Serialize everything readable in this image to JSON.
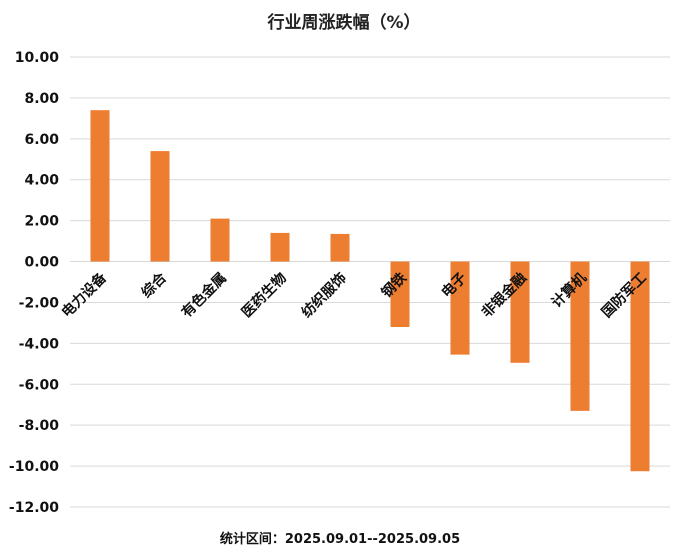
{
  "chart_data": {
    "type": "bar",
    "title": "行业周涨跌幅（%）",
    "categories": [
      "电力设备",
      "综合",
      "有色金属",
      "医药生物",
      "纺织服饰",
      "钢铁",
      "电子",
      "非银金融",
      "计算机",
      "国防军工"
    ],
    "values": [
      7.4,
      5.4,
      2.1,
      1.4,
      1.35,
      -3.2,
      -4.55,
      -4.95,
      -7.3,
      -10.25
    ],
    "ylim": [
      -12,
      10
    ],
    "yticks": [
      "10.00",
      "8.00",
      "6.00",
      "4.00",
      "2.00",
      "0.00",
      "-2.00",
      "-4.00",
      "-6.00",
      "-8.00",
      "-10.00",
      "-12.00"
    ],
    "ytick_values": [
      10,
      8,
      6,
      4,
      2,
      0,
      -2,
      -4,
      -6,
      -8,
      -10,
      -12
    ],
    "grid": true,
    "legend": "none",
    "bar_color": "#ED7D31",
    "footnote": "统计区间：2025.09.01--2025.09.05"
  }
}
